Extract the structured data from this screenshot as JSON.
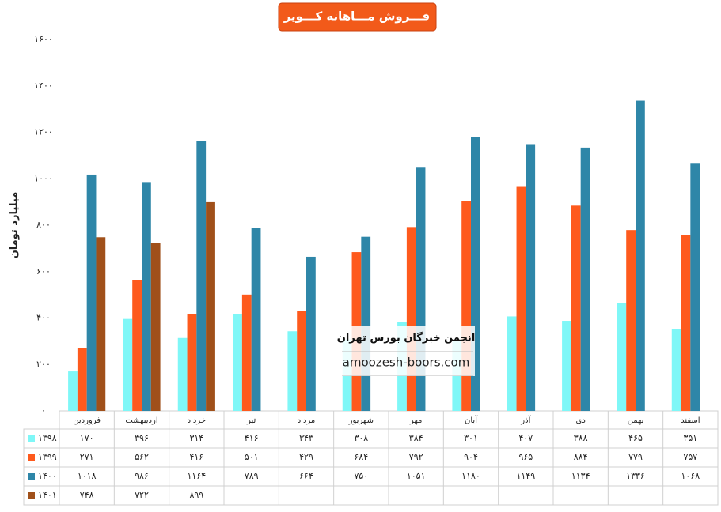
{
  "chart_data": {
    "type": "bar",
    "title": "فـــروش مـــاهانه کـــویر",
    "y_label": "میلیارد تومان",
    "annotations": [
      "انجمن خبرگان بورس تهران",
      "amoozesh-boors.com"
    ],
    "categories": [
      "فروردین",
      "اردیبهشت",
      "خرداد",
      "تیر",
      "مرداد",
      "شهریور",
      "مهر",
      "آبان",
      "آذر",
      "دی",
      "بهمن",
      "اسفند"
    ],
    "series": [
      {
        "name": "۱۳۹۸",
        "color": "#7ff7f7",
        "values": [
          170,
          396,
          314,
          416,
          343,
          308,
          384,
          301,
          407,
          388,
          465,
          351
        ],
        "value_labels": [
          "۱۷۰",
          "۳۹۶",
          "۳۱۴",
          "۴۱۶",
          "۳۴۳",
          "۳۰۸",
          "۳۸۴",
          "۳۰۱",
          "۴۰۷",
          "۳۸۸",
          "۴۶۵",
          "۳۵۱"
        ]
      },
      {
        "name": "۱۳۹۹",
        "color": "#fe5a1d",
        "values": [
          271,
          562,
          416,
          501,
          429,
          684,
          792,
          904,
          965,
          884,
          779,
          757
        ],
        "value_labels": [
          "۲۷۱",
          "۵۶۲",
          "۴۱۶",
          "۵۰۱",
          "۴۲۹",
          "۶۸۴",
          "۷۹۲",
          "۹۰۴",
          "۹۶۵",
          "۸۸۴",
          "۷۷۹",
          "۷۵۷"
        ]
      },
      {
        "name": "۱۴۰۰",
        "color": "#2e86a8",
        "values": [
          1018,
          986,
          1164,
          789,
          664,
          750,
          1051,
          1180,
          1149,
          1134,
          1336,
          1068
        ],
        "value_labels": [
          "۱۰۱۸",
          "۹۸۶",
          "۱۱۶۴",
          "۷۸۹",
          "۶۶۴",
          "۷۵۰",
          "۱۰۵۱",
          "۱۱۸۰",
          "۱۱۴۹",
          "۱۱۳۴",
          "۱۳۳۶",
          "۱۰۶۸"
        ]
      },
      {
        "name": "۱۴۰۱",
        "color": "#a0501a",
        "values": [
          748,
          722,
          899,
          null,
          null,
          null,
          null,
          null,
          null,
          null,
          null,
          null
        ],
        "value_labels": [
          "۷۴۸",
          "۷۲۲",
          "۸۹۹",
          null,
          null,
          null,
          null,
          null,
          null,
          null,
          null,
          null
        ]
      }
    ],
    "ylim": [
      0,
      1600
    ],
    "yticks": [
      {
        "value": 0,
        "label": "۰"
      },
      {
        "value": 200,
        "label": "۲۰۰"
      },
      {
        "value": 400,
        "label": "۴۰۰"
      },
      {
        "value": 600,
        "label": "۶۰۰"
      },
      {
        "value": 800,
        "label": "۸۰۰"
      },
      {
        "value": 1000,
        "label": "۱۰۰۰"
      },
      {
        "value": 1200,
        "label": "۱۲۰۰"
      },
      {
        "value": 1400,
        "label": "۱۴۰۰"
      },
      {
        "value": 1600,
        "label": "۱۶۰۰"
      }
    ],
    "grid": false
  }
}
